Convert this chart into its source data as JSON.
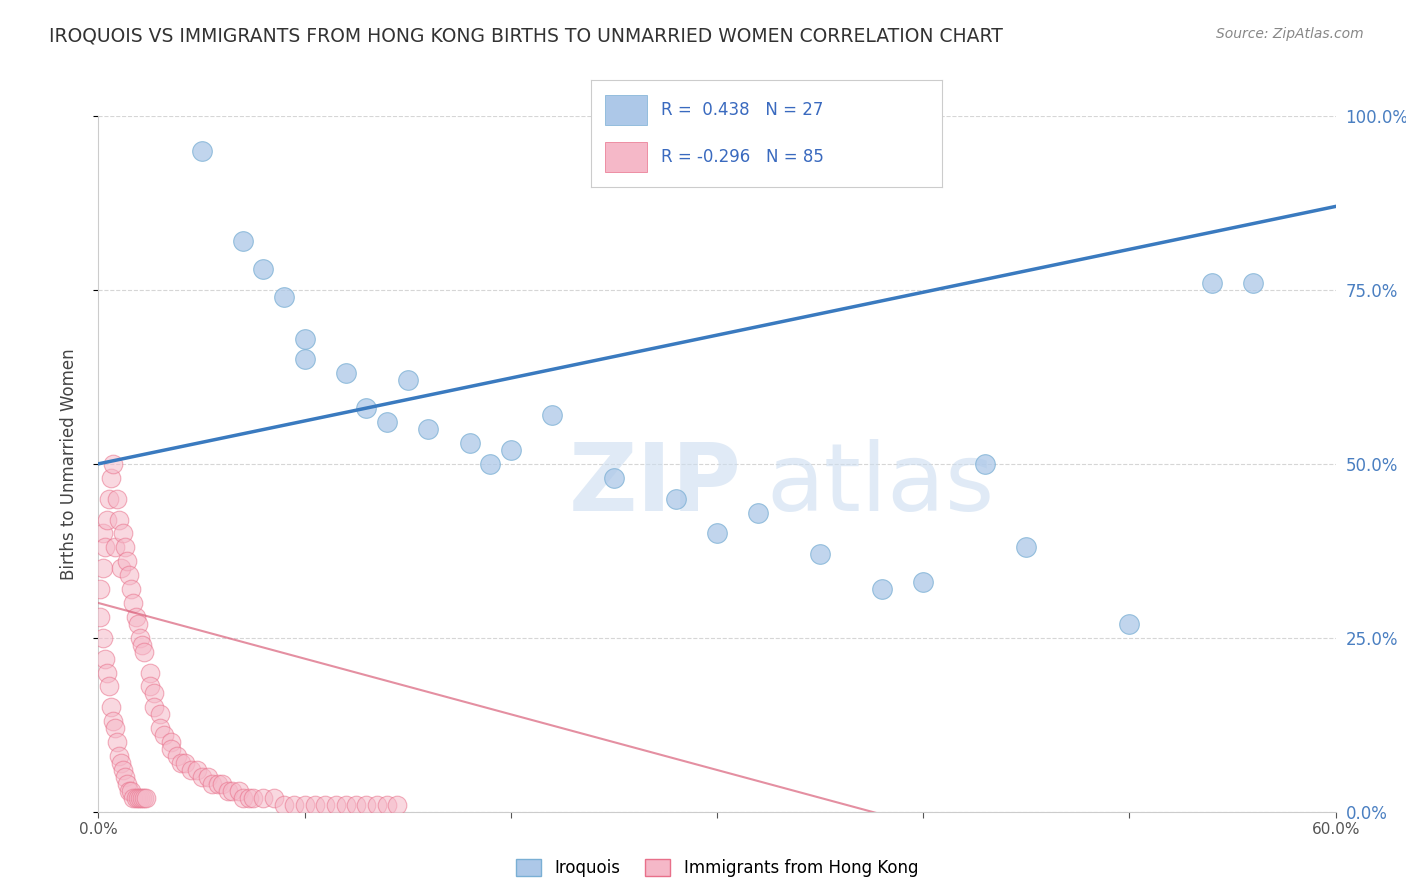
{
  "title": "IROQUOIS VS IMMIGRANTS FROM HONG KONG BIRTHS TO UNMARRIED WOMEN CORRELATION CHART",
  "source": "Source: ZipAtlas.com",
  "ylabel": "Births to Unmarried Women",
  "xlim": [
    0.0,
    0.6
  ],
  "ylim": [
    0.0,
    1.0
  ],
  "xticks": [
    0.0,
    0.1,
    0.2,
    0.3,
    0.4,
    0.5,
    0.6
  ],
  "xtick_labels": [
    "0.0%",
    "",
    "",
    "",
    "",
    "",
    "60.0%"
  ],
  "yticks": [
    0.0,
    0.25,
    0.5,
    0.75,
    1.0
  ],
  "ytick_labels_right": [
    "0.0%",
    "25.0%",
    "50.0%",
    "75.0%",
    "100.0%"
  ],
  "legend_label1": "Iroquois",
  "legend_label2": "Immigrants from Hong Kong",
  "R1": 0.438,
  "N1": 27,
  "R2": -0.296,
  "N2": 85,
  "blue_color": "#adc8e8",
  "blue_edge_color": "#7aafd4",
  "blue_line_color": "#3a7abf",
  "pink_color": "#f5b8c8",
  "pink_edge_color": "#e8708a",
  "pink_line_color": "#d9607a",
  "legend_r_color": "#3a6abf",
  "blue_line_y0": 0.5,
  "blue_line_y1": 0.87,
  "pink_line_y0": 0.3,
  "pink_line_slope": -0.8,
  "blue_scatter_x": [
    0.05,
    0.07,
    0.08,
    0.09,
    0.1,
    0.1,
    0.12,
    0.13,
    0.14,
    0.15,
    0.16,
    0.18,
    0.19,
    0.2,
    0.22,
    0.25,
    0.28,
    0.3,
    0.32,
    0.35,
    0.38,
    0.4,
    0.43,
    0.45,
    0.5,
    0.54,
    0.56
  ],
  "blue_scatter_y": [
    0.95,
    0.82,
    0.78,
    0.74,
    0.68,
    0.65,
    0.63,
    0.58,
    0.56,
    0.62,
    0.55,
    0.53,
    0.5,
    0.52,
    0.57,
    0.48,
    0.45,
    0.4,
    0.43,
    0.37,
    0.32,
    0.33,
    0.5,
    0.38,
    0.27,
    0.76,
    0.76
  ],
  "pink_scatter_x": [
    0.001,
    0.001,
    0.002,
    0.002,
    0.002,
    0.003,
    0.003,
    0.004,
    0.004,
    0.005,
    0.005,
    0.006,
    0.006,
    0.007,
    0.007,
    0.008,
    0.008,
    0.009,
    0.009,
    0.01,
    0.01,
    0.011,
    0.011,
    0.012,
    0.012,
    0.013,
    0.013,
    0.014,
    0.014,
    0.015,
    0.015,
    0.016,
    0.016,
    0.017,
    0.017,
    0.018,
    0.018,
    0.019,
    0.019,
    0.02,
    0.02,
    0.021,
    0.021,
    0.022,
    0.022,
    0.023,
    0.025,
    0.025,
    0.027,
    0.027,
    0.03,
    0.03,
    0.032,
    0.035,
    0.035,
    0.038,
    0.04,
    0.042,
    0.045,
    0.048,
    0.05,
    0.053,
    0.055,
    0.058,
    0.06,
    0.063,
    0.065,
    0.068,
    0.07,
    0.073,
    0.075,
    0.08,
    0.085,
    0.09,
    0.095,
    0.1,
    0.105,
    0.11,
    0.115,
    0.12,
    0.125,
    0.13,
    0.135,
    0.14,
    0.145
  ],
  "pink_scatter_y": [
    0.32,
    0.28,
    0.35,
    0.25,
    0.4,
    0.22,
    0.38,
    0.2,
    0.42,
    0.18,
    0.45,
    0.15,
    0.48,
    0.13,
    0.5,
    0.12,
    0.38,
    0.1,
    0.45,
    0.08,
    0.42,
    0.07,
    0.35,
    0.06,
    0.4,
    0.05,
    0.38,
    0.04,
    0.36,
    0.03,
    0.34,
    0.03,
    0.32,
    0.02,
    0.3,
    0.02,
    0.28,
    0.02,
    0.27,
    0.02,
    0.25,
    0.02,
    0.24,
    0.02,
    0.23,
    0.02,
    0.2,
    0.18,
    0.17,
    0.15,
    0.14,
    0.12,
    0.11,
    0.1,
    0.09,
    0.08,
    0.07,
    0.07,
    0.06,
    0.06,
    0.05,
    0.05,
    0.04,
    0.04,
    0.04,
    0.03,
    0.03,
    0.03,
    0.02,
    0.02,
    0.02,
    0.02,
    0.02,
    0.01,
    0.01,
    0.01,
    0.01,
    0.01,
    0.01,
    0.01,
    0.01,
    0.01,
    0.01,
    0.01,
    0.01
  ]
}
